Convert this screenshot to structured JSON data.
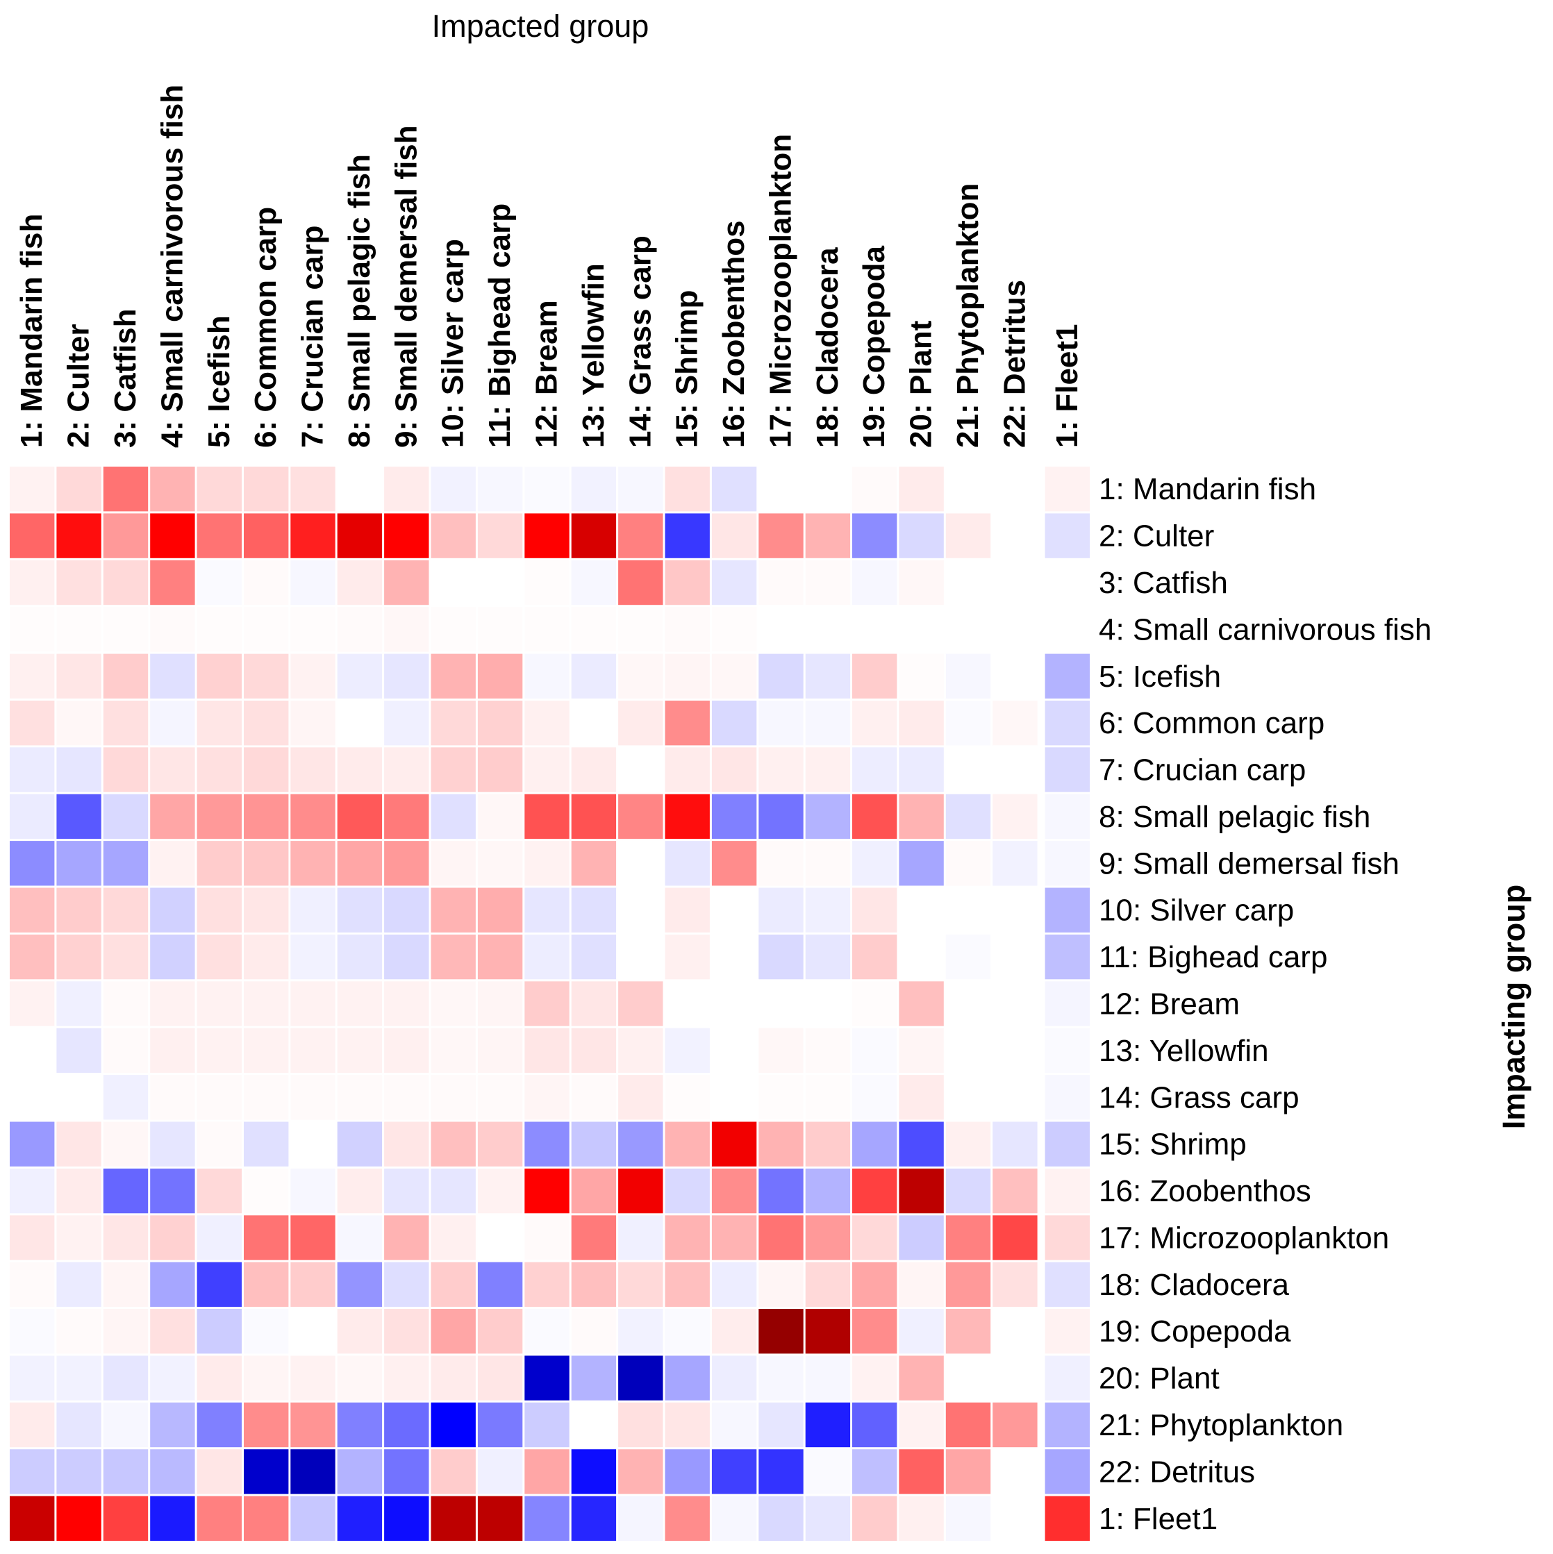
{
  "chart_data": {
    "type": "heatmap",
    "title": "",
    "xlabel": "Impacted group",
    "ylabel": "Impacting group",
    "columns": [
      "1: Mandarin fish",
      "2: Culter",
      "3: Catfish",
      "4: Small carnivorous fish",
      "5: Icefish",
      "6: Common carp",
      "7: Crucian carp",
      "8: Small pelagic fish",
      "9: Small demersal fish",
      "10: Silver carp",
      "11: Bighead carp",
      "12: Bream",
      "13: Yellowfin",
      "14: Grass carp",
      "15: Shrimp",
      "16: Zoobenthos",
      "17: Microzooplankton",
      "18: Cladocera",
      "19: Copepoda",
      "20: Plant",
      "21: Phytoplankton",
      "22: Detritus",
      "1: Fleet1"
    ],
    "rows": [
      "1: Mandarin fish",
      "2: Culter",
      "3: Catfish",
      "4: Small carnivorous fish",
      "5: Icefish",
      "6: Common carp",
      "7: Crucian carp",
      "8: Small pelagic fish",
      "9: Small demersal fish",
      "10: Silver carp",
      "11: Bighead carp",
      "12: Bream",
      "13: Yellowfin",
      "14: Grass carp",
      "15: Shrimp",
      "16: Zoobenthos",
      "17: Microzooplankton",
      "18: Cladocera",
      "19: Copepoda",
      "20: Plant",
      "21: Phytoplankton",
      "22: Detritus",
      "1: Fleet1"
    ],
    "value_range": [
      -1,
      1
    ],
    "colormap": {
      "negative": "#0000ff",
      "zero": "#ffffff",
      "positive": "#ff0000",
      "extreme_negative": "#000099",
      "extreme_positive": "#880000"
    },
    "grid_color": "#ffffff",
    "values": [
      [
        0.05,
        0.15,
        0.55,
        0.3,
        0.15,
        0.15,
        0.12,
        0,
        0.08,
        -0.05,
        -0.03,
        -0.02,
        -0.05,
        -0.03,
        0.12,
        -0.12,
        0,
        0,
        0.02,
        0.08,
        0,
        0,
        0.05
      ],
      [
        0.6,
        0.95,
        0.4,
        1,
        0.55,
        0.62,
        0.88,
        1.1,
        1,
        0.25,
        0.15,
        1,
        1.15,
        0.5,
        -0.78,
        0.1,
        0.45,
        0.3,
        -0.45,
        -0.15,
        0.08,
        0,
        -0.12
      ],
      [
        0.06,
        0.12,
        0.15,
        0.5,
        -0.02,
        0.02,
        -0.03,
        0.08,
        0.3,
        0,
        0,
        0.01,
        -0.03,
        0.55,
        0.22,
        -0.1,
        0.02,
        0.02,
        -0.03,
        0.03,
        0,
        0,
        0
      ],
      [
        0.01,
        0.01,
        0.01,
        0.02,
        0.01,
        0.01,
        0.01,
        0.02,
        0.03,
        0.01,
        0.01,
        0.01,
        0.01,
        0.01,
        0.02,
        0.01,
        0,
        0,
        0,
        0,
        0,
        0,
        0
      ],
      [
        0.06,
        0.1,
        0.2,
        -0.12,
        0.18,
        0.15,
        0.05,
        -0.07,
        -0.1,
        0.3,
        0.32,
        -0.03,
        -0.08,
        0.03,
        0.04,
        0.03,
        -0.15,
        -0.1,
        0.2,
        0.01,
        -0.03,
        0,
        -0.3
      ],
      [
        0.12,
        0.03,
        0.12,
        -0.04,
        0.1,
        0.12,
        0.04,
        0,
        -0.06,
        0.15,
        0.18,
        0.06,
        0,
        0.08,
        0.45,
        -0.15,
        -0.03,
        -0.03,
        0.06,
        0.08,
        -0.02,
        0.03,
        -0.15
      ],
      [
        -0.08,
        -0.1,
        0.15,
        0.1,
        0.12,
        0.15,
        0.1,
        0.08,
        0.07,
        0.18,
        0.2,
        0.06,
        0.08,
        0,
        0.08,
        0.1,
        0.06,
        0.06,
        -0.07,
        -0.08,
        0,
        0,
        -0.15
      ],
      [
        -0.08,
        -0.65,
        -0.15,
        0.35,
        0.4,
        0.42,
        0.45,
        0.65,
        0.52,
        -0.12,
        0.03,
        0.68,
        0.68,
        0.48,
        0.95,
        -0.5,
        -0.55,
        -0.3,
        0.68,
        0.3,
        -0.12,
        0.05,
        -0.03
      ],
      [
        -0.45,
        -0.35,
        -0.35,
        0.05,
        0.2,
        0.22,
        0.3,
        0.35,
        0.4,
        0.04,
        0.03,
        0.05,
        0.3,
        0,
        -0.1,
        0.45,
        0.02,
        0.02,
        -0.06,
        -0.35,
        0.02,
        -0.05,
        -0.03
      ],
      [
        0.25,
        0.2,
        0.15,
        -0.18,
        0.12,
        0.1,
        -0.06,
        -0.12,
        -0.15,
        0.3,
        0.32,
        -0.1,
        -0.12,
        0,
        0.08,
        0,
        -0.08,
        -0.06,
        0.1,
        0,
        0,
        0,
        -0.3
      ],
      [
        0.25,
        0.18,
        0.12,
        -0.18,
        0.12,
        0.08,
        -0.05,
        -0.1,
        -0.15,
        0.28,
        0.3,
        -0.07,
        -0.12,
        0,
        0.06,
        0,
        -0.15,
        -0.1,
        0.2,
        0,
        -0.02,
        0,
        -0.25
      ],
      [
        0.05,
        -0.06,
        0.02,
        0.05,
        0.05,
        0.05,
        0.05,
        0.05,
        0.05,
        0.03,
        0.04,
        0.2,
        0.1,
        0.2,
        0,
        0,
        0,
        0,
        0.01,
        0.25,
        0,
        0,
        -0.04
      ],
      [
        0,
        -0.1,
        0.02,
        0.06,
        0.05,
        0.05,
        0.05,
        0.05,
        0.06,
        0.03,
        0.04,
        0.1,
        0.1,
        0.06,
        -0.05,
        0,
        0.03,
        0.02,
        -0.02,
        0.04,
        0,
        0,
        -0.02
      ],
      [
        0,
        0,
        -0.06,
        0.02,
        0.02,
        0.02,
        0.02,
        0.02,
        0.02,
        0.02,
        0.02,
        0.04,
        0.02,
        0.08,
        0.01,
        0,
        0.01,
        0.01,
        -0.02,
        0.08,
        0,
        0,
        -0.03
      ],
      [
        -0.4,
        0.1,
        0.03,
        -0.1,
        0.02,
        -0.12,
        0,
        -0.18,
        0.1,
        0.25,
        0.2,
        -0.45,
        -0.22,
        -0.4,
        0.3,
        1.05,
        0.3,
        0.2,
        -0.35,
        -0.7,
        0.06,
        -0.1,
        -0.2
      ],
      [
        -0.06,
        0.08,
        -0.6,
        -0.55,
        0.15,
        0.01,
        -0.03,
        0.07,
        -0.1,
        -0.1,
        0.05,
        1,
        0.35,
        1.05,
        -0.15,
        0.45,
        -0.55,
        -0.3,
        0.75,
        1.25,
        -0.15,
        0.25,
        0.05
      ],
      [
        0.1,
        0.05,
        0.1,
        0.18,
        -0.06,
        0.55,
        0.6,
        -0.03,
        0.3,
        0.06,
        0,
        0.02,
        0.52,
        -0.06,
        0.3,
        0.3,
        0.55,
        0.4,
        0.15,
        -0.2,
        0.5,
        0.72,
        0.15
      ],
      [
        0.02,
        -0.08,
        0.04,
        -0.35,
        -0.75,
        0.25,
        0.2,
        -0.42,
        -0.13,
        0.2,
        -0.5,
        0.18,
        0.25,
        0.15,
        0.25,
        -0.07,
        0.04,
        0.15,
        0.35,
        0.04,
        0.4,
        0.12,
        -0.12
      ],
      [
        -0.02,
        0.02,
        0.04,
        0.12,
        -0.2,
        -0.02,
        0,
        0.08,
        0.12,
        0.35,
        0.2,
        -0.02,
        0.02,
        -0.05,
        -0.02,
        0.07,
        1.4,
        1.3,
        0.45,
        -0.06,
        0.28,
        0,
        0.05
      ],
      [
        -0.05,
        -0.05,
        -0.1,
        -0.05,
        0.08,
        0.04,
        0.05,
        0.03,
        0.06,
        0.08,
        0.1,
        -1.15,
        -0.3,
        -1.2,
        -0.35,
        -0.07,
        -0.03,
        -0.03,
        0.05,
        0.3,
        0,
        0,
        -0.06
      ],
      [
        0.08,
        -0.1,
        -0.03,
        -0.28,
        -0.5,
        0.45,
        0.42,
        -0.5,
        -0.58,
        -1,
        -0.52,
        -0.2,
        0,
        0.12,
        0.1,
        -0.03,
        -0.1,
        -0.88,
        -0.62,
        0.05,
        0.55,
        0.4,
        -0.3
      ],
      [
        -0.2,
        -0.2,
        -0.22,
        -0.27,
        0.1,
        -1.15,
        -1.2,
        -0.3,
        -0.55,
        0.2,
        -0.06,
        0.35,
        -0.95,
        0.3,
        -0.4,
        -0.75,
        -0.8,
        -0.02,
        -0.25,
        0.62,
        0.35,
        0,
        -0.35
      ],
      [
        1.2,
        1,
        0.75,
        -0.9,
        0.5,
        0.5,
        -0.22,
        -0.88,
        -0.95,
        1.25,
        1.25,
        -0.48,
        -0.85,
        -0.04,
        0.45,
        -0.03,
        -0.15,
        -0.1,
        0.2,
        0.06,
        -0.03,
        0,
        0.82
      ]
    ]
  }
}
